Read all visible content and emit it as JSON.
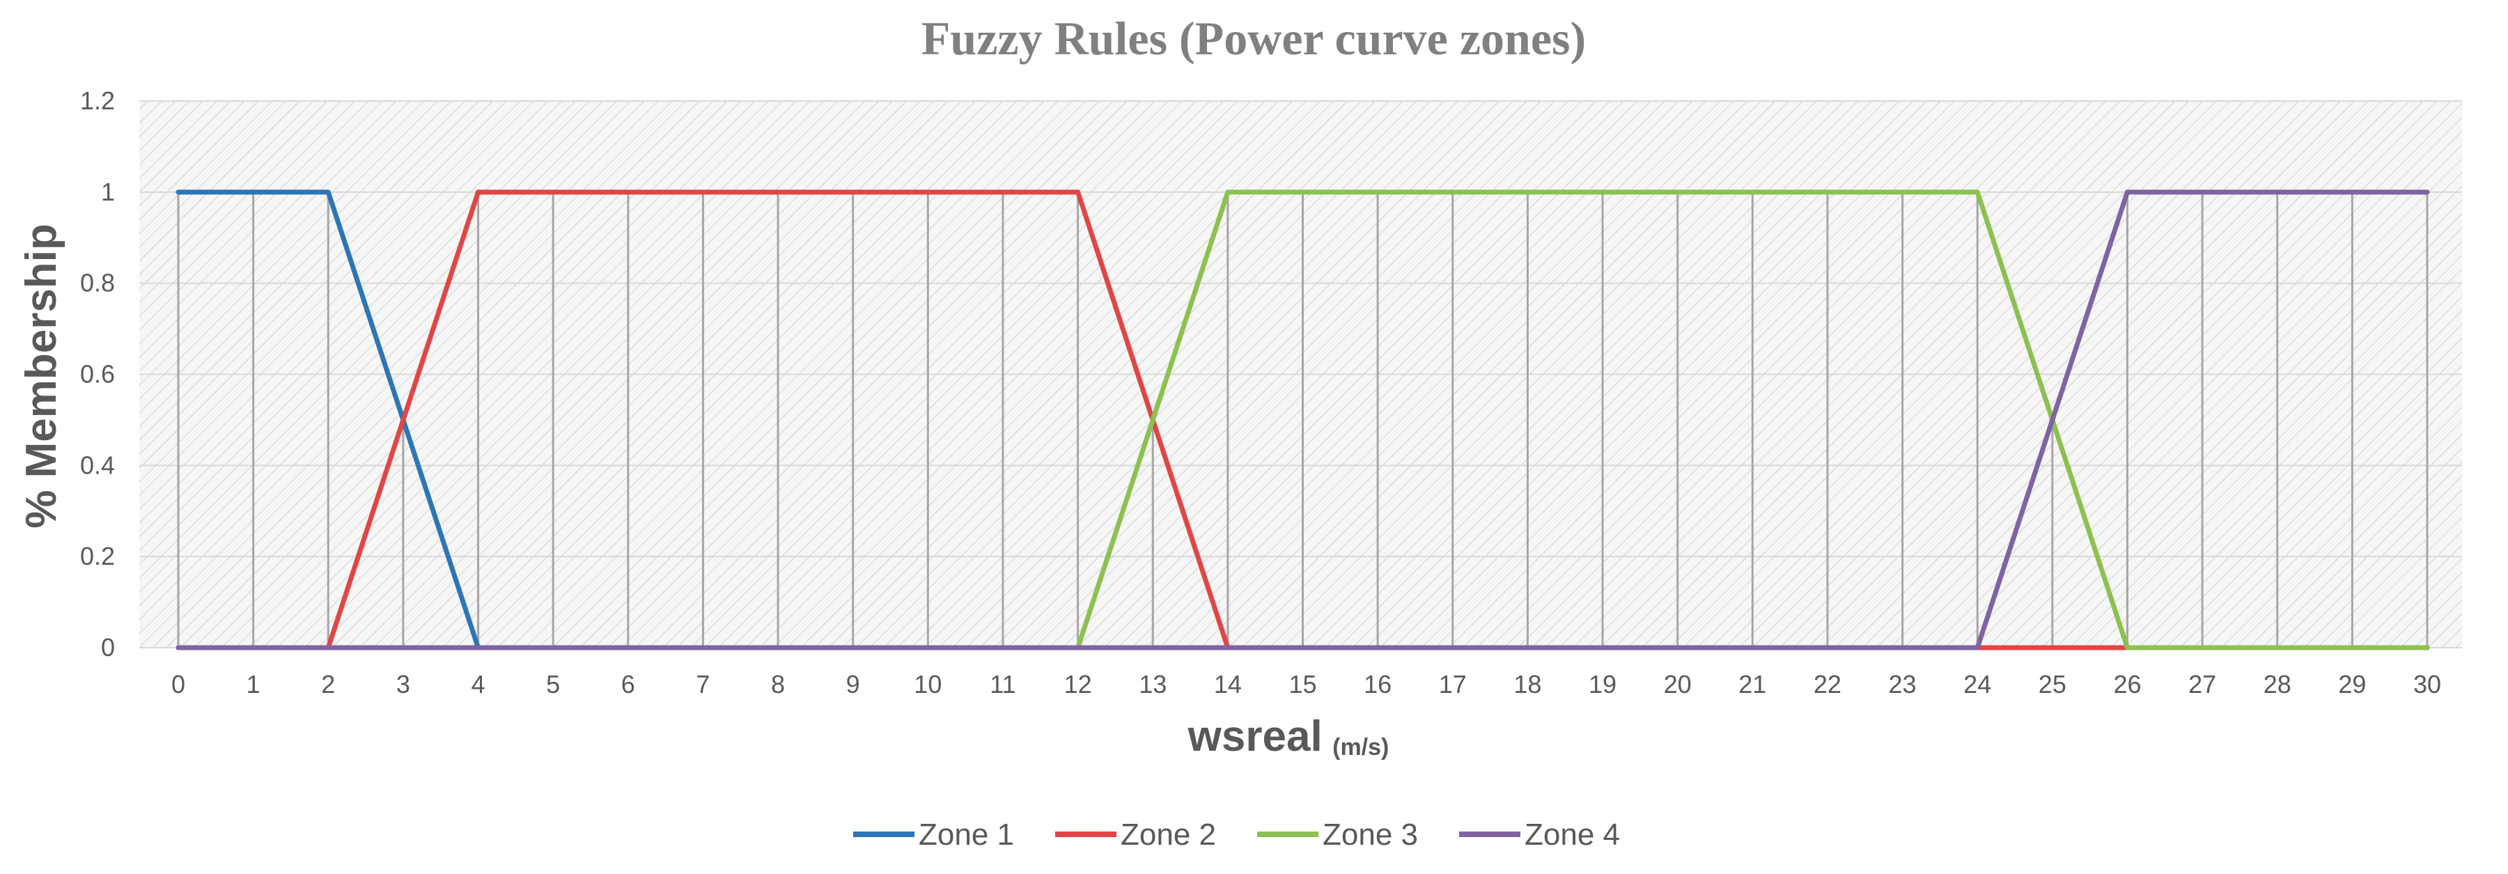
{
  "chart_data": {
    "type": "line",
    "title": "Fuzzy Rules (Power curve zones)",
    "xlabel": "wsreal",
    "xlabel_unit": "(m/s)",
    "ylabel": "% Membership",
    "x": [
      0,
      1,
      2,
      3,
      4,
      5,
      6,
      7,
      8,
      9,
      10,
      11,
      12,
      13,
      14,
      15,
      16,
      17,
      18,
      19,
      20,
      21,
      22,
      23,
      24,
      25,
      26,
      27,
      28,
      29,
      30
    ],
    "xlim": [
      0,
      30
    ],
    "ylim": [
      0,
      1.2
    ],
    "y_ticks": [
      "0",
      "0.2",
      "0.4",
      "0.6",
      "0.8",
      "1",
      "1.2"
    ],
    "y_tick_values": [
      0,
      0.2,
      0.4,
      0.6,
      0.8,
      1,
      1.2
    ],
    "grid": true,
    "vertical_drop_lines": true,
    "legend_position": "bottom",
    "series": [
      {
        "name": "Zone 1",
        "color": "#2E75B6",
        "values": [
          1,
          1,
          1,
          0.5,
          0,
          0,
          0,
          0,
          0,
          0,
          0,
          0,
          0,
          0,
          0,
          0,
          0,
          0,
          0,
          0,
          0,
          0,
          0,
          0,
          0,
          0,
          0,
          0,
          0,
          0,
          0
        ]
      },
      {
        "name": "Zone 2",
        "color": "#E04646",
        "values": [
          0,
          0,
          0,
          0.5,
          1,
          1,
          1,
          1,
          1,
          1,
          1,
          1,
          1,
          0.5,
          0,
          0,
          0,
          0,
          0,
          0,
          0,
          0,
          0,
          0,
          0,
          0,
          0,
          0,
          0,
          0,
          0
        ]
      },
      {
        "name": "Zone 3",
        "color": "#8CC152",
        "values": [
          0,
          0,
          0,
          0,
          0,
          0,
          0,
          0,
          0,
          0,
          0,
          0,
          0,
          0.5,
          1,
          1,
          1,
          1,
          1,
          1,
          1,
          1,
          1,
          1,
          1,
          0.5,
          0,
          0,
          0,
          0,
          0
        ]
      },
      {
        "name": "Zone 4",
        "color": "#8064A2",
        "values": [
          0,
          0,
          0,
          0,
          0,
          0,
          0,
          0,
          0,
          0,
          0,
          0,
          0,
          0,
          0,
          0,
          0,
          0,
          0,
          0,
          0,
          0,
          0,
          0,
          0,
          0.5,
          1,
          1,
          1,
          1,
          1
        ]
      }
    ]
  }
}
